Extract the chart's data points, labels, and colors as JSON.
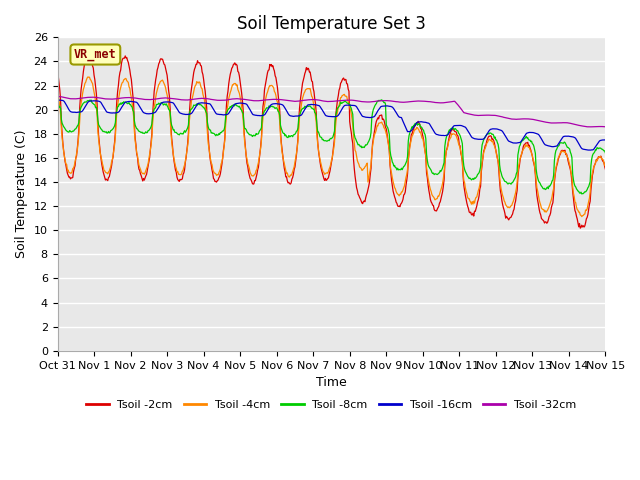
{
  "title": "Soil Temperature Set 3",
  "xlabel": "Time",
  "ylabel": "Soil Temperature (C)",
  "ylim": [
    0,
    26
  ],
  "yticks": [
    0,
    2,
    4,
    6,
    8,
    10,
    12,
    14,
    16,
    18,
    20,
    22,
    24,
    26
  ],
  "colors": {
    "tsoil_2cm": "#dd0000",
    "tsoil_4cm": "#ff8800",
    "tsoil_8cm": "#00cc00",
    "tsoil_16cm": "#0000cc",
    "tsoil_32cm": "#aa00aa"
  },
  "legend_labels": [
    "Tsoil -2cm",
    "Tsoil -4cm",
    "Tsoil -8cm",
    "Tsoil -16cm",
    "Tsoil -32cm"
  ],
  "annotation_text": "VR_met",
  "plot_bg_color": "#e8e8e8",
  "fig_bg_color": "#ffffff",
  "title_fontsize": 12,
  "axis_fontsize": 9,
  "tick_fontsize": 8,
  "n_days": 15
}
